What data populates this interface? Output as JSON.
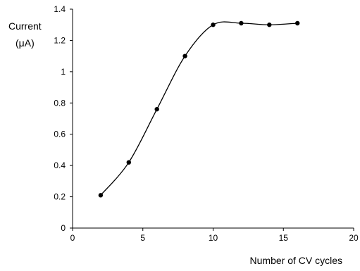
{
  "chart_data": {
    "type": "line",
    "xlabel": "Number of CV cycles",
    "ylabel_line1": "Current",
    "ylabel_line2": "(μA)",
    "xlim": [
      0,
      20
    ],
    "ylim": [
      0,
      1.4
    ],
    "xticks": [
      0,
      5,
      10,
      15,
      20
    ],
    "yticks": [
      0,
      0.2,
      0.4,
      0.6,
      0.8,
      1,
      1.2,
      1.4
    ],
    "grid": false,
    "series": [
      {
        "x": [
          2,
          4,
          6,
          8,
          10,
          12,
          14,
          16
        ],
        "y": [
          0.21,
          0.42,
          0.76,
          1.1,
          1.3,
          1.31,
          1.3,
          1.31
        ],
        "color": "#000000",
        "smooth": true
      }
    ]
  }
}
